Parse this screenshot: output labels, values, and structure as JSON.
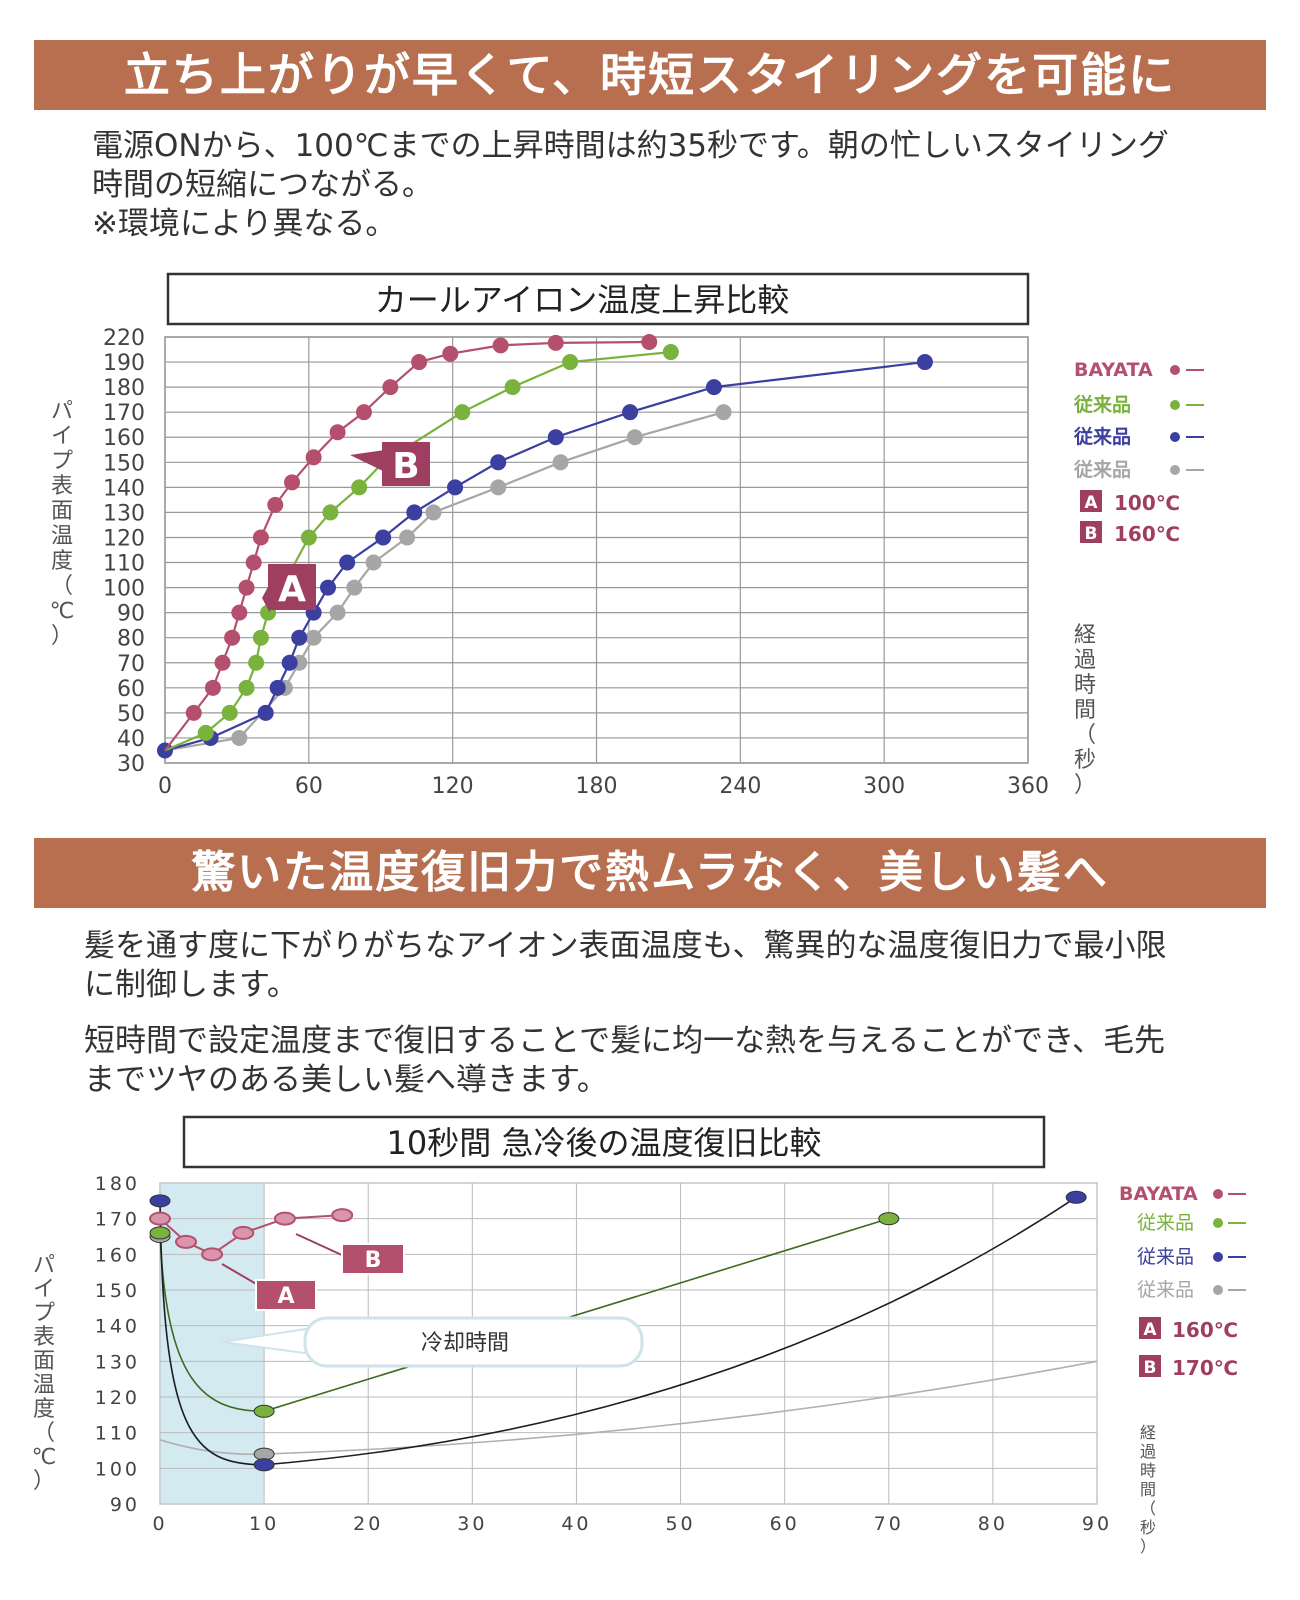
{
  "section1": {
    "heading": "立ち上がりが早くて、時短スタイリングを可能に",
    "lines": [
      "電源ONから、100℃までの上昇時間は約35秒です。朝の忙しいスタイリング",
      "時間の短縮につながる。",
      "※環境により異なる。"
    ]
  },
  "section2": {
    "heading": "驚いた温度復旧力で熱ムラなく、美しい髪へ",
    "lines": [
      "髪を通す度に下がりがちなアイオン表面温度も、驚異的な温度復旧力で最小限",
      "に制御します。",
      "短時間で設定温度まで復旧することで髪に均一な熱を与えることができ、毛先",
      "までツヤのある美しい髪へ導きます。"
    ]
  },
  "chart_data": [
    {
      "type": "line",
      "title": "カールアイロン温度上昇比較",
      "ylabel": "パイプ表面温度（℃）",
      "xlabel": "経過時間（秒）",
      "xlim": [
        0,
        360
      ],
      "yticks": [
        30,
        40,
        50,
        60,
        70,
        80,
        90,
        100,
        110,
        120,
        130,
        140,
        150,
        160,
        170,
        180,
        190,
        220
      ],
      "xticks": [
        0,
        60,
        120,
        180,
        240,
        300,
        360
      ],
      "series": [
        {
          "name": "BAYATA",
          "color": "#b4506e",
          "points": [
            [
              0,
              35
            ],
            [
              12,
              50
            ],
            [
              20,
              60
            ],
            [
              24,
              70
            ],
            [
              28,
              80
            ],
            [
              31,
              90
            ],
            [
              34,
              100
            ],
            [
              37,
              110
            ],
            [
              40,
              120
            ],
            [
              46,
              133
            ],
            [
              53,
              142
            ],
            [
              62,
              152
            ],
            [
              72,
              162
            ],
            [
              83,
              170
            ],
            [
              94,
              180
            ],
            [
              106,
              190
            ],
            [
              119,
              200
            ],
            [
              140,
              210
            ],
            [
              163,
              213
            ],
            [
              202,
              214
            ]
          ]
        },
        {
          "name": "従来品",
          "color": "#79b23c",
          "points": [
            [
              0,
              35
            ],
            [
              17,
              42
            ],
            [
              27,
              50
            ],
            [
              34,
              60
            ],
            [
              38,
              70
            ],
            [
              40,
              80
            ],
            [
              43,
              90
            ],
            [
              60,
              120
            ],
            [
              69,
              130
            ],
            [
              81,
              140
            ],
            [
              91,
              150
            ],
            [
              124,
              170
            ],
            [
              145,
              180
            ],
            [
              169,
              190
            ],
            [
              211,
              202
            ]
          ]
        },
        {
          "name": "従来品",
          "color": "#3a3fa0",
          "points": [
            [
              0,
              35
            ],
            [
              19,
              40
            ],
            [
              42,
              50
            ],
            [
              47,
              60
            ],
            [
              52,
              70
            ],
            [
              56,
              80
            ],
            [
              62,
              90
            ],
            [
              68,
              100
            ],
            [
              76,
              110
            ],
            [
              91,
              120
            ],
            [
              104,
              130
            ],
            [
              121,
              140
            ],
            [
              139,
              150
            ],
            [
              163,
              160
            ],
            [
              194,
              170
            ],
            [
              229,
              180
            ],
            [
              317,
              190
            ]
          ]
        },
        {
          "name": "従来品",
          "color": "#a6a6a6",
          "points": [
            [
              0,
              35
            ],
            [
              31,
              40
            ],
            [
              50,
              60
            ],
            [
              56,
              70
            ],
            [
              62,
              80
            ],
            [
              72,
              90
            ],
            [
              79,
              100
            ],
            [
              87,
              110
            ],
            [
              101,
              120
            ],
            [
              112,
              130
            ],
            [
              139,
              140
            ],
            [
              165,
              150
            ],
            [
              196,
              160
            ],
            [
              233,
              170
            ]
          ]
        }
      ],
      "annotations": [
        {
          "label": "A",
          "text": "100℃"
        },
        {
          "label": "B",
          "text": "160℃"
        }
      ],
      "legend": [
        "BAYATA",
        "従来品",
        "従来品",
        "従来品"
      ]
    },
    {
      "type": "line",
      "title": "10秒間 急冷後の温度復旧比較",
      "ylabel": "パイプ表面温度（℃）",
      "xlabel": "経過時間（秒）",
      "xlim": [
        0,
        90
      ],
      "ylim": [
        90,
        180
      ],
      "yticks": [
        90,
        100,
        110,
        120,
        130,
        140,
        150,
        160,
        170,
        180
      ],
      "xticks": [
        0,
        10,
        20,
        30,
        40,
        50,
        60,
        70,
        80,
        90
      ],
      "shaded_region": {
        "x": [
          0,
          10
        ],
        "label": "冷却時間"
      },
      "series": [
        {
          "name": "BAYATA",
          "color": "#b4506e",
          "points": [
            [
              0,
              170
            ],
            [
              2.5,
              163.5
            ],
            [
              5,
              160
            ],
            [
              8,
              166
            ],
            [
              12,
              170
            ],
            [
              17.5,
              171
            ]
          ]
        },
        {
          "name": "従来品",
          "color": "#79b23c",
          "points": [
            [
              0,
              166
            ],
            [
              10,
              116
            ],
            [
              70,
              170
            ]
          ]
        },
        {
          "name": "従来品",
          "color": "#3a3fa0",
          "points": [
            [
              0,
              175
            ],
            [
              10,
              101
            ],
            [
              88,
              176
            ]
          ]
        },
        {
          "name": "従来品",
          "color": "#a6a6a6",
          "points": [
            [
              0,
              165
            ],
            [
              10,
              104
            ],
            [
              90,
              130
            ]
          ]
        }
      ],
      "annotations": [
        {
          "label": "A",
          "text": "160℃"
        },
        {
          "label": "B",
          "text": "170℃"
        }
      ],
      "legend": [
        "BAYATA",
        "従来品",
        "従来品",
        "従来品"
      ]
    }
  ]
}
